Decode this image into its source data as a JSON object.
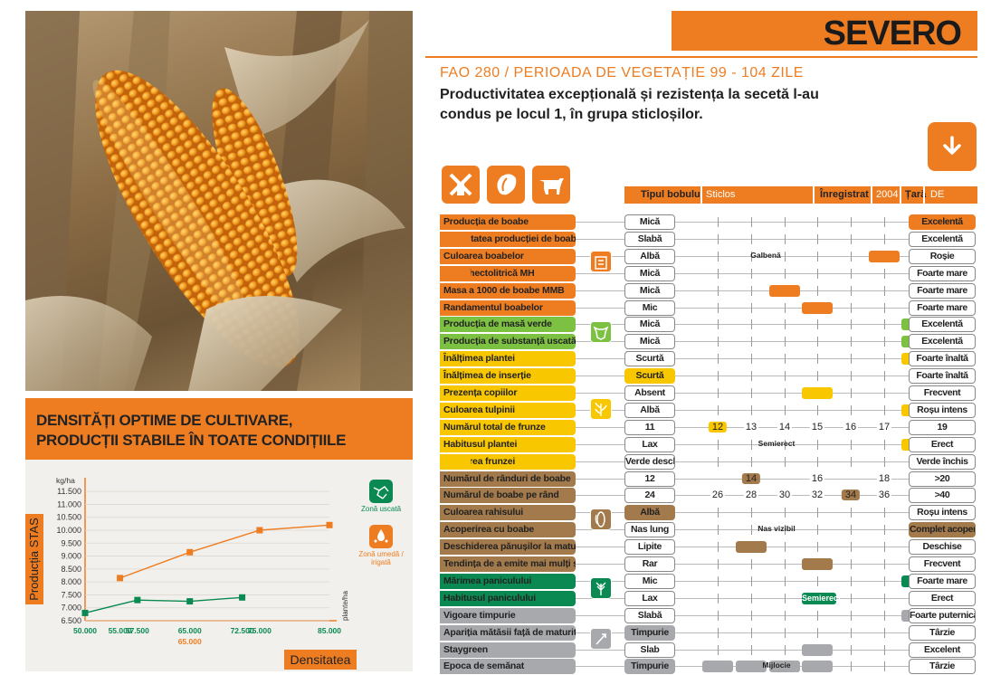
{
  "brand": "SEVERO",
  "fao": "FAO 280 / PERIOADA DE VEGETAȚIE 99 - 104 ZILE",
  "tagline": "Productivitatea excepțională și rezistența la secetă l-au condus pe locul 1, în grupa sticloșilor.",
  "colors": {
    "orange": "#ee7d22",
    "green": "#7dc142",
    "yellow": "#f9c700",
    "brown": "#a27a4b",
    "dark_green": "#0a8a52",
    "grey": "#a7a9ac"
  },
  "icons": {
    "download": "arrow-down-icon",
    "uses": [
      "windmill-icon",
      "grain-icon",
      "cow-icon"
    ],
    "groups": [
      "grain-bag-icon",
      "cow-head-icon",
      "plant-icon",
      "corn-cob-icon",
      "tassel-icon",
      "seedling-icon"
    ]
  },
  "meta": {
    "kernel_type_label": "Tipul bobului",
    "kernel_type_value": "Sticlos",
    "registered_label": "Înregistrat",
    "registered_value": "2004",
    "country_label": "Țară",
    "country_value": "DE"
  },
  "density": {
    "title_line1": "DENSITĂȚI OPTIME DE CULTIVARE,",
    "title_line2": "PRODUCȚII STABILE ÎN TOATE CONDIȚIILE",
    "y_title": "Producția STAS",
    "y_unit": "kg/ha",
    "x_title": "Densitatea",
    "x_unit": "plante/ha",
    "legend_dry": "Zonă uscată",
    "legend_wet": "Zonă umedă / irigată",
    "marker_65000": "65.000"
  },
  "chart_data": {
    "type": "line",
    "xlabel": "Densitatea",
    "ylabel": "Producția STAS",
    "x_ticks": [
      "50.000",
      "55.000",
      "57.500",
      "65.000",
      "72.500",
      "75.000",
      "85.000"
    ],
    "y_ticks": [
      "6.500",
      "7.000",
      "7.500",
      "8.000",
      "8.500",
      "9.000",
      "9.500",
      "10.000",
      "10.500",
      "11.000",
      "11.500"
    ],
    "ylim": [
      6500,
      11750
    ],
    "series": [
      {
        "name": "Zonă uscată",
        "color": "#0a8a52",
        "x": [
          50000,
          57500,
          65000,
          72500
        ],
        "y": [
          6800,
          7300,
          7250,
          7400
        ]
      },
      {
        "name": "Zonă umedă / irigată",
        "color": "#ee7d22",
        "x": [
          55000,
          65000,
          75000,
          85000
        ],
        "y": [
          8150,
          9150,
          10000,
          10200
        ]
      }
    ]
  },
  "table": {
    "rows": [
      {
        "label": "Producția de boabe",
        "group": "orange",
        "low": "Mică",
        "high": "Excelentă",
        "high_filled": true
      },
      {
        "label": "Stabilitatea producției de boabe",
        "group": "orange",
        "low": "Slabă",
        "high": "Excelentă",
        "pos": 8
      },
      {
        "label": "Culoarea boabelor",
        "group": "orange",
        "low": "Albă",
        "high": "Roșie",
        "pos": 6,
        "mid": "Galbenă"
      },
      {
        "label": "Masa hectolitrică MH",
        "group": "orange",
        "low": "Mică",
        "high": "Foarte mare",
        "pos": 8
      },
      {
        "label": "Masa a 1000 de boabe MMB",
        "group": "orange",
        "low": "Mică",
        "high": "Foarte mare",
        "pos": 3
      },
      {
        "label": "Randamentul boabelor",
        "group": "orange",
        "low": "Mic",
        "high": "Foarte mare",
        "pos": 4
      },
      {
        "label": "Producția de masă verde",
        "group": "green",
        "low": "Mică",
        "high": "Excelentă",
        "pos": 7
      },
      {
        "label": "Producția de substanță uscată",
        "group": "green",
        "low": "Mică",
        "high": "Excelentă",
        "pos": 7
      },
      {
        "label": "Înălțimea plantei",
        "group": "yellow",
        "low": "Scurtă",
        "high": "Foarte înaltă",
        "pos": 7
      },
      {
        "label": "Înălțimea de inserție",
        "group": "yellow",
        "low": "Scurtă",
        "high": "Foarte înaltă",
        "low_filled": true
      },
      {
        "label": "Prezența copiilor",
        "group": "yellow",
        "low": "Absent",
        "high": "Frecvent",
        "pos": 4
      },
      {
        "label": "Culoarea tulpinii",
        "group": "yellow",
        "low": "Albă",
        "high": "Roșu intens",
        "pos": 7
      },
      {
        "label": "Numărul total de frunze",
        "group": "yellow",
        "low": "11",
        "high": "19",
        "nums": [
          "12",
          "13",
          "14",
          "15",
          "16",
          "17",
          "18"
        ],
        "num_hl": 0
      },
      {
        "label": "Habitusul plantei",
        "group": "yellow",
        "low": "Lax",
        "high": "Erect",
        "pos": 7,
        "mid": "Semierect"
      },
      {
        "label": "Culoarea frunzei",
        "group": "yellow",
        "low": "Verde deschis",
        "high": "Verde închis",
        "pos": 8
      },
      {
        "label": "Numărul de rânduri de boabe",
        "group": "brown",
        "low": "12",
        "high": ">20",
        "nums": [
          "14",
          "16",
          "18"
        ],
        "num_hl": 0,
        "sparse": true
      },
      {
        "label": "Numărul de boabe pe rând",
        "group": "brown",
        "low": "24",
        "high": ">40",
        "nums": [
          "26",
          "28",
          "30",
          "32",
          "34",
          "36",
          "38"
        ],
        "num_hl": 4
      },
      {
        "label": "Culoarea rahisului",
        "group": "brown",
        "low": "Albă",
        "high": "Roșu intens",
        "low_filled": true
      },
      {
        "label": "Acoperirea cu boabe",
        "group": "brown",
        "low": "Nas lung",
        "high": "Complet acoperit",
        "high_filled": true,
        "mid": "Nas vizibil"
      },
      {
        "label": "Deschiderea pănușilor la maturitate",
        "group": "brown",
        "low": "Lipite",
        "high": "Deschise",
        "pos": 2
      },
      {
        "label": "Tendința de a emite mai mulți știuleți",
        "group": "brown",
        "low": "Rar",
        "high": "Frecvent",
        "pos": 4
      },
      {
        "label": "Mărimea paniculului",
        "group": "dark_green",
        "low": "Mic",
        "high": "Foarte mare",
        "pos": 7
      },
      {
        "label": "Habitusul paniculului",
        "group": "dark_green",
        "low": "Lax",
        "high": "Erect",
        "pos": 4,
        "mid_on_mark": "Semierect"
      },
      {
        "label": "Vigoare timpurie",
        "group": "grey",
        "low": "Slabă",
        "high": "Foarte puternică",
        "pos": 7
      },
      {
        "label": "Apariția mătăsii față de maturitate",
        "group": "grey",
        "low": "Timpurie",
        "high": "Târzie",
        "low_filled": true
      },
      {
        "label": "Staygreen",
        "group": "grey",
        "low": "Slab",
        "high": "Excelent",
        "pos": 4
      },
      {
        "label": "Epoca de semănat",
        "group": "grey",
        "low": "Timpurie",
        "high": "Târzie",
        "low_filled": true,
        "range": [
          0,
          4
        ],
        "mid": "Mijlocie"
      }
    ]
  }
}
